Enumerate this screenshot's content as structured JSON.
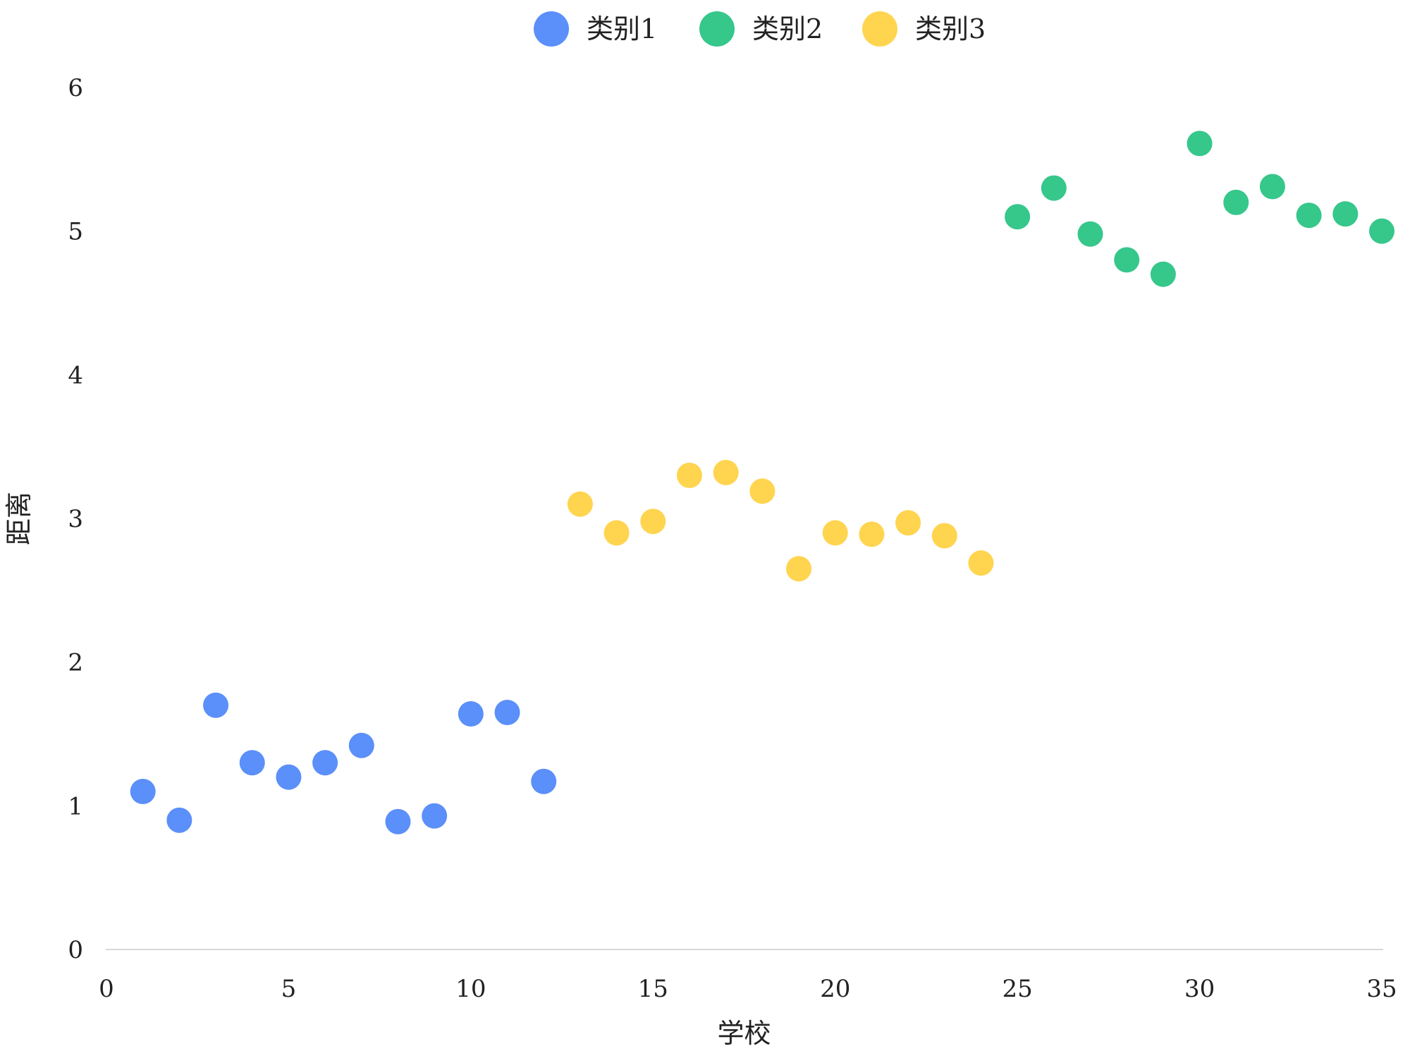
{
  "chart_data": {
    "type": "scatter",
    "xlabel": "学校",
    "ylabel": "距离",
    "xlim": [
      0,
      35
    ],
    "ylim": [
      0,
      6
    ],
    "x_ticks": [
      "0",
      "5",
      "10",
      "15",
      "20",
      "25",
      "30",
      "35"
    ],
    "y_ticks": [
      "0",
      "1",
      "2",
      "3",
      "4",
      "5",
      "6"
    ],
    "grid": false,
    "legend_position": "top-center",
    "series": [
      {
        "name": "类别1",
        "color": "#5B8FF9",
        "points": [
          {
            "x": 1,
            "y": 1.1
          },
          {
            "x": 2,
            "y": 0.9
          },
          {
            "x": 3,
            "y": 1.7
          },
          {
            "x": 4,
            "y": 1.3
          },
          {
            "x": 5,
            "y": 1.2
          },
          {
            "x": 6,
            "y": 1.3
          },
          {
            "x": 7,
            "y": 1.42
          },
          {
            "x": 8,
            "y": 0.89
          },
          {
            "x": 9,
            "y": 0.93
          },
          {
            "x": 10,
            "y": 1.64
          },
          {
            "x": 11,
            "y": 1.65
          },
          {
            "x": 12,
            "y": 1.17
          }
        ]
      },
      {
        "name": "类别2",
        "color": "#36C78B",
        "points": [
          {
            "x": 25,
            "y": 5.1
          },
          {
            "x": 26,
            "y": 5.3
          },
          {
            "x": 27,
            "y": 4.98
          },
          {
            "x": 28,
            "y": 4.8
          },
          {
            "x": 29,
            "y": 4.7
          },
          {
            "x": 30,
            "y": 5.61
          },
          {
            "x": 31,
            "y": 5.2
          },
          {
            "x": 32,
            "y": 5.31
          },
          {
            "x": 33,
            "y": 5.11
          },
          {
            "x": 34,
            "y": 5.12
          },
          {
            "x": 35,
            "y": 5.0
          }
        ]
      },
      {
        "name": "类别3",
        "color": "#FFD44F",
        "points": [
          {
            "x": 13,
            "y": 3.1
          },
          {
            "x": 14,
            "y": 2.9
          },
          {
            "x": 15,
            "y": 2.98
          },
          {
            "x": 16,
            "y": 3.3
          },
          {
            "x": 17,
            "y": 3.32
          },
          {
            "x": 18,
            "y": 3.19
          },
          {
            "x": 19,
            "y": 2.65
          },
          {
            "x": 20,
            "y": 2.9
          },
          {
            "x": 21,
            "y": 2.89
          },
          {
            "x": 22,
            "y": 2.97
          },
          {
            "x": 23,
            "y": 2.88
          },
          {
            "x": 24,
            "y": 2.69
          }
        ]
      }
    ]
  }
}
